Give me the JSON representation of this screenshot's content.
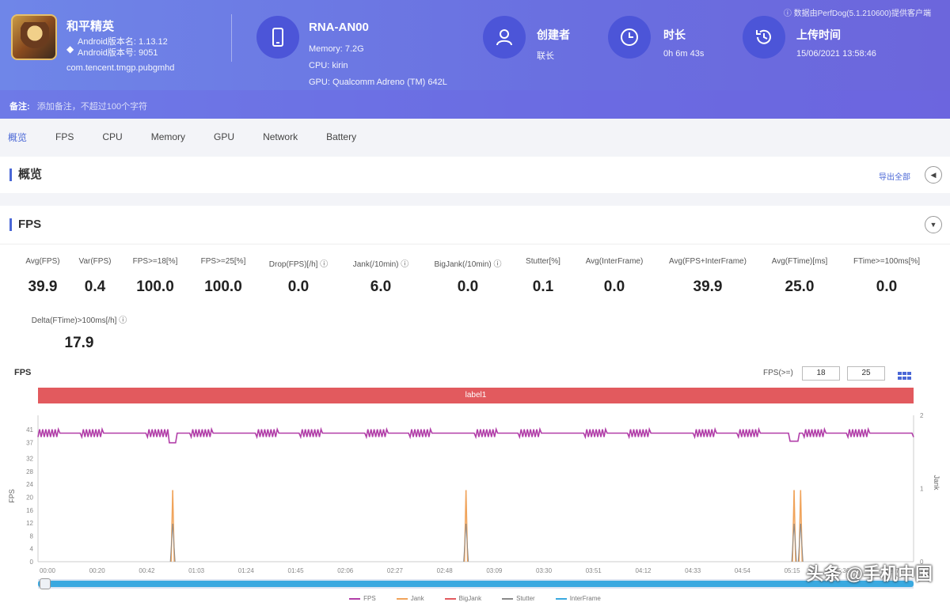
{
  "header": {
    "game_name": "和平精英",
    "game_version_line1": "Android版本名: 1.13.12",
    "game_version_line2": "Android版本号: 9051",
    "package": "com.tencent.tmgp.pubgmhd",
    "device_name": "RNA-AN00",
    "device_memory": "Memory: 7.2G",
    "device_cpu": "CPU: kirin",
    "device_gpu": "GPU: Qualcomm Adreno (TM) 642L",
    "creator_label": "创建者",
    "creator_value": "联长",
    "duration_label": "时长",
    "duration_value": "0h 6m 43s",
    "upload_label": "上传时间",
    "upload_value": "15/06/2021 13:58:46",
    "top_right_text": "数据由PerfDog(5.1.210600)提供客户端",
    "note_label": "备注:",
    "note_text": "添加备注，不超过100个字符"
  },
  "tabs": [
    "概览",
    "FPS",
    "CPU",
    "Memory",
    "GPU",
    "Network",
    "Battery"
  ],
  "overview": {
    "title": "概览",
    "export_label": "导出全部"
  },
  "fps_panel": {
    "title": "FPS",
    "metrics": [
      {
        "label": "Avg(FPS)",
        "value": "39.9"
      },
      {
        "label": "Var(FPS)",
        "value": "0.4"
      },
      {
        "label": "FPS>=18[%]",
        "value": "100.0"
      },
      {
        "label": "FPS>=25[%]",
        "value": "100.0"
      },
      {
        "label": "Drop(FPS)[/h] ⓘ",
        "value": "0.0"
      },
      {
        "label": "Jank(/10min) ⓘ",
        "value": "6.0"
      },
      {
        "label": "BigJank(/10min) ⓘ",
        "value": "0.0"
      },
      {
        "label": "Stutter[%]",
        "value": "0.1"
      },
      {
        "label": "Avg(InterFrame)",
        "value": "0.0"
      },
      {
        "label": "Avg(FPS+InterFrame)",
        "value": "39.9"
      },
      {
        "label": "Avg(FTime)[ms]",
        "value": "25.0"
      },
      {
        "label": "FTime>=100ms[%]",
        "value": "0.0"
      },
      {
        "label": "Delta(FTime)>100ms[/h] ⓘ",
        "value": "17.9"
      }
    ],
    "chart_title": "FPS",
    "fps_filter_label": "FPS(>=)",
    "fps_filter_1": "18",
    "fps_filter_2": "25",
    "bar_label": "label1",
    "watermark": "头条 @手机中国"
  },
  "colors": {
    "header_start": "#6f86e8",
    "header_end": "#6c66dc",
    "accent": "#4a67d6",
    "fps_line": "#b13ea8",
    "jank": "#f0a35a",
    "bigjank": "#e25a5e",
    "stutter": "#8a8a8a",
    "interframe": "#3aa9e0"
  },
  "chart_data": {
    "type": "line",
    "title": "FPS",
    "ylabel": "FPS",
    "y2label": "Jank",
    "ylim": [
      0,
      41
    ],
    "y2lim": [
      0,
      2
    ],
    "yticks": [
      "0",
      "4",
      "8",
      "12",
      "16",
      "20",
      "24",
      "28",
      "32",
      "37",
      "41"
    ],
    "y2ticks": [
      "0",
      "1",
      "2"
    ],
    "xticks": [
      "00:00",
      "00:20",
      "00:42",
      "01:03",
      "01:24",
      "01:45",
      "02:06",
      "02:27",
      "02:48",
      "03:09",
      "03:30",
      "03:51",
      "04:12",
      "04:33",
      "04:54",
      "05:15",
      "05:36",
      "05:57"
    ],
    "legend": [
      "FPS",
      "Jank",
      "BigJank",
      "Stutter",
      "InterFrame"
    ],
    "fps_base": 39.9,
    "jank_events": [
      {
        "t": 62,
        "value": 1
      },
      {
        "t": 197,
        "value": 1
      },
      {
        "t": 348,
        "value": 1
      },
      {
        "t": 351,
        "value": 1
      }
    ],
    "duration_s": 403
  }
}
